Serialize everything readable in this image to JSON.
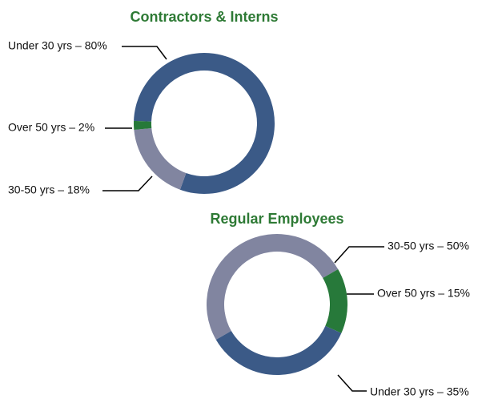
{
  "chart_data": [
    {
      "type": "donut",
      "title": "Contractors & Interns",
      "values": [
        80,
        18,
        2
      ],
      "value_labels": [
        "Under 30 yrs – 80%",
        "30-50 yrs – 18%",
        "Over 50 yrs – 2%"
      ],
      "colors": [
        "#3b5a87",
        "#8185a0",
        "#27793a"
      ]
    },
    {
      "type": "donut",
      "title": "Regular Employees",
      "values": [
        50,
        15,
        35
      ],
      "value_labels": [
        "30-50 yrs – 50%",
        "Over 50 yrs – 15%",
        "Under 30 yrs – 35%"
      ],
      "colors": [
        "#8185a0",
        "#27793a",
        "#3b5a87"
      ]
    }
  ]
}
